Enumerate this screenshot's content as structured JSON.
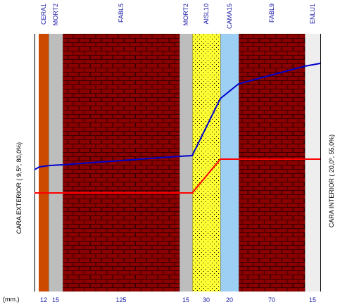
{
  "layers": [
    {
      "name": "CERA1",
      "thickness": "12",
      "fill": "#cc4a00",
      "pattern": "solid"
    },
    {
      "name": "MORT2",
      "thickness": "15",
      "fill": "#bdbdbd",
      "pattern": "solid"
    },
    {
      "name": "FABL5",
      "thickness": "125",
      "fill": "#8b0000",
      "pattern": "brick"
    },
    {
      "name": "MORT2",
      "thickness": "15",
      "fill": "#bdbdbd",
      "pattern": "solid"
    },
    {
      "name": "AISL10",
      "thickness": "30",
      "fill": "#ffff33",
      "pattern": "dots"
    },
    {
      "name": "CAMA15",
      "thickness": "20",
      "fill": "#9dcff5",
      "pattern": "solid"
    },
    {
      "name": "FABL9",
      "thickness": "70",
      "fill": "#8b0000",
      "pattern": "brick"
    },
    {
      "name": "ENLU1",
      "thickness": "15",
      "fill": "#eeeeee",
      "pattern": "solid"
    }
  ],
  "units_label": "(mm.)",
  "left_side_label": "CARA EXTERIOR ( 9,5º, 80,0%)",
  "right_side_label": "CARA INTERIOR ( 20,0º, 55,0%)",
  "colors": {
    "layer_name_text": "#1a1aa6",
    "thickness_text": "#1a1aa6",
    "side_text": "#000000",
    "blue_line": "#0000cc",
    "red_line": "#ff0000"
  }
}
